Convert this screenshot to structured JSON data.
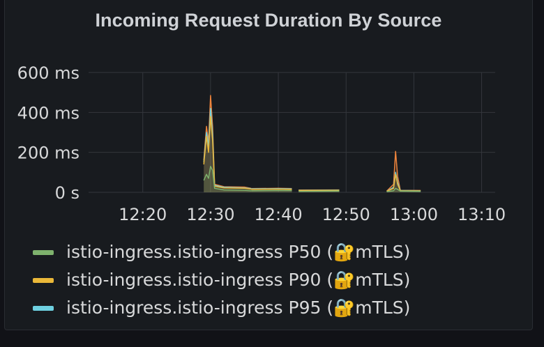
{
  "panel": {
    "title": "Incoming Request Duration By Source"
  },
  "chart_data": {
    "type": "line",
    "title": "Incoming Request Duration By Source",
    "xlabel": "",
    "ylabel": "",
    "ylim": [
      0,
      600
    ],
    "yticks": [
      0,
      200,
      400,
      600
    ],
    "ytick_labels": [
      "0 s",
      "200 ms",
      "400 ms",
      "600 ms"
    ],
    "xlim": [
      "12:12",
      "13:12"
    ],
    "xticks": [
      "12:20",
      "12:30",
      "12:40",
      "12:50",
      "13:00",
      "13:10"
    ],
    "grid": true,
    "legend_position": "bottom-left",
    "series": [
      {
        "name": "istio-ingress.istio-ingress P50 (🔐mTLS)",
        "color": "#7eb26d",
        "points": [
          [
            "12:29",
            60
          ],
          [
            "12:29.4",
            90
          ],
          [
            "12:29.7",
            70
          ],
          [
            "12:30",
            130
          ],
          [
            "12:30.3",
            110
          ],
          [
            "12:30.6",
            20
          ],
          [
            "12:32",
            12
          ],
          [
            "12:35",
            10
          ],
          [
            "12:36",
            8
          ],
          null,
          [
            "12:36",
            8
          ],
          [
            "12:40",
            9
          ],
          [
            "12:42",
            9
          ],
          null,
          [
            "12:43",
            5
          ],
          [
            "12:49",
            6
          ],
          null,
          [
            "12:56",
            3
          ],
          [
            "12:57",
            8
          ],
          [
            "12:57.3",
            20
          ],
          [
            "12:57.6",
            15
          ],
          [
            "12:58",
            6
          ],
          [
            "13:01",
            5
          ]
        ]
      },
      {
        "name": "istio-ingress.istio-ingress P90 (🔐mTLS)",
        "color": "#eab839",
        "points": [
          [
            "12:29",
            140
          ],
          [
            "12:29.4",
            280
          ],
          [
            "12:29.7",
            200
          ],
          [
            "12:30",
            380
          ],
          [
            "12:30.3",
            260
          ],
          [
            "12:30.6",
            30
          ],
          [
            "12:32",
            22
          ],
          [
            "12:35",
            20
          ],
          [
            "12:36",
            16
          ],
          null,
          [
            "12:36",
            15
          ],
          [
            "12:40",
            16
          ],
          [
            "12:42",
            15
          ],
          null,
          [
            "12:43",
            9
          ],
          [
            "12:49",
            10
          ],
          null,
          [
            "12:56",
            5
          ],
          [
            "12:57",
            20
          ],
          [
            "12:57.3",
            90
          ],
          [
            "12:57.6",
            40
          ],
          [
            "12:58",
            8
          ],
          [
            "13:01",
            7
          ]
        ]
      },
      {
        "name": "istio-ingress.istio-ingress P95 (🔐mTLS)",
        "color": "#6ed0e0",
        "points": [
          [
            "12:29",
            150
          ],
          [
            "12:29.4",
            300
          ],
          [
            "12:29.7",
            230
          ],
          [
            "12:30",
            420
          ],
          [
            "12:30.3",
            290
          ],
          [
            "12:30.6",
            35
          ],
          [
            "12:32",
            25
          ],
          [
            "12:35",
            22
          ],
          [
            "12:36",
            18
          ],
          null,
          [
            "12:36",
            17
          ],
          [
            "12:40",
            18
          ],
          [
            "12:42",
            17
          ],
          null,
          [
            "12:43",
            10
          ],
          [
            "12:49",
            11
          ],
          null,
          [
            "12:56",
            5
          ],
          [
            "12:57",
            25
          ],
          [
            "12:57.3",
            100
          ],
          [
            "12:57.6",
            50
          ],
          [
            "12:58",
            9
          ],
          [
            "13:01",
            8
          ]
        ]
      },
      {
        "name": "",
        "color": "#ef843c",
        "points": [
          [
            "12:29",
            160
          ],
          [
            "12:29.4",
            330
          ],
          [
            "12:29.7",
            250
          ],
          [
            "12:30",
            485
          ],
          [
            "12:30.3",
            330
          ],
          [
            "12:30.6",
            40
          ],
          [
            "12:32",
            28
          ],
          [
            "12:35",
            26
          ],
          [
            "12:36",
            20
          ],
          null,
          [
            "12:36",
            19
          ],
          [
            "12:40",
            20
          ],
          [
            "12:42",
            19
          ],
          null,
          [
            "12:43",
            11
          ],
          [
            "12:49",
            12
          ],
          null,
          [
            "12:56",
            6
          ],
          [
            "12:57",
            40
          ],
          [
            "12:57.3",
            205
          ],
          [
            "12:57.6",
            80
          ],
          [
            "12:58",
            10
          ],
          [
            "13:01",
            9
          ]
        ]
      }
    ]
  },
  "legend": {
    "items": [
      {
        "label": "istio-ingress.istio-ingress P50 (🔐mTLS)",
        "color": "#7eb26d"
      },
      {
        "label": "istio-ingress.istio-ingress P90 (🔐mTLS)",
        "color": "#eab839"
      },
      {
        "label": "istio-ingress.istio-ingress P95 (🔐mTLS)",
        "color": "#6ed0e0"
      }
    ]
  }
}
